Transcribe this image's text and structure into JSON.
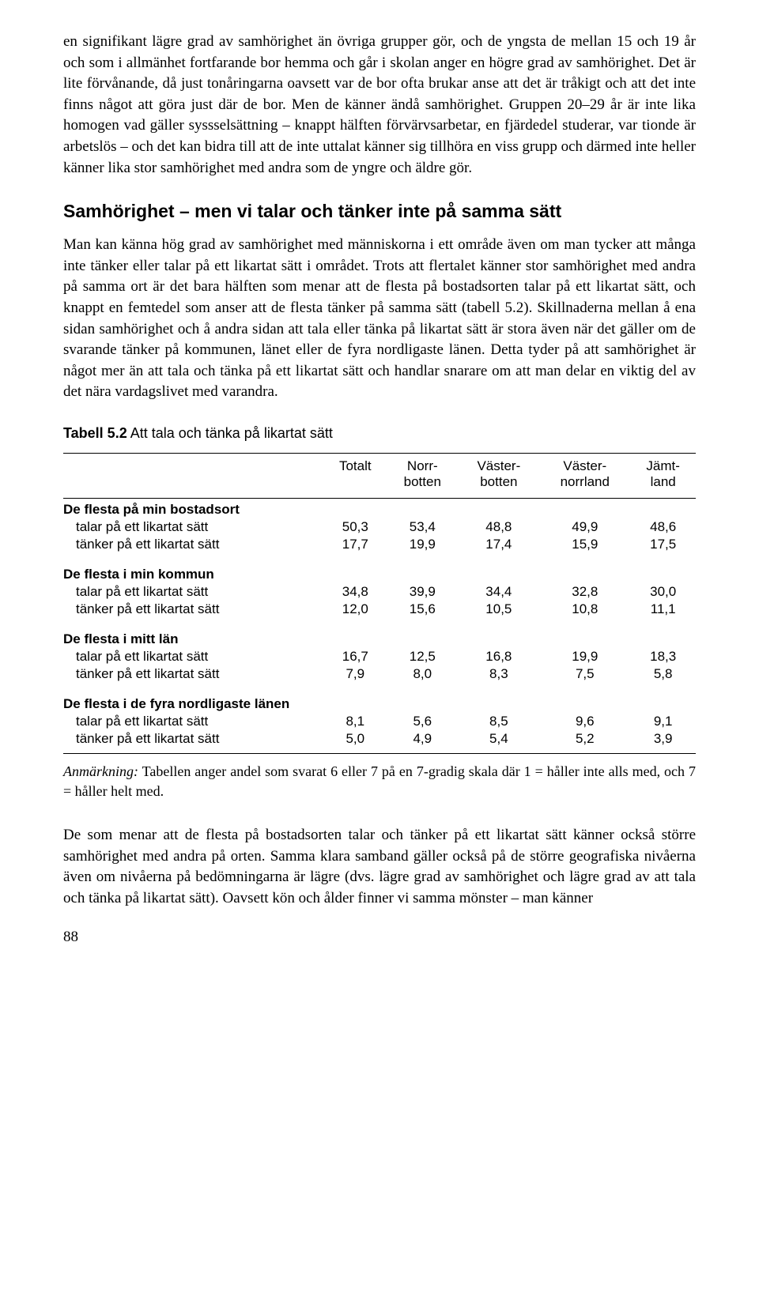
{
  "para1": "en signifikant lägre grad av samhörighet än övriga grupper gör, och de yngsta de mellan 15 och 19 år och som i allmänhet fortfarande bor hemma och går i skolan anger en högre grad av samhörighet. Det är lite förvånande, då just ton­åringarna oavsett var de bor ofta brukar anse att det är tråkigt och att det inte finns något att göra just där de bor. Men de känner ändå samhörighet. Gruppen 20–29 år är inte lika homogen vad gäller syssselsättning – knappt hälften för­värvsarbetar, en fjärdedel studerar, var tionde är arbetslös – och det kan bidra till att de inte uttalat känner sig tillhöra en viss grupp och därmed inte heller känner lika stor samhörighet med andra som de yngre och äldre gör.",
  "heading": "Samhörighet – men vi talar och tänker inte på samma sätt",
  "para2": "Man kan känna hög grad av samhörighet med människorna i ett område även om man tycker att många inte tänker eller talar på ett likartat sätt i området. Trots att flertalet känner stor samhörighet med andra på samma ort är det bara hälften som menar att de flesta på bostadsorten talar på ett likartat sätt, och knappt en femtedel som anser att de flesta tänker på samma sätt (tabell 5.2). Skillnaderna mellan å ena sidan samhörighet och å andra sidan att tala eller tänka på likartat sätt är stora även när det gäller om de svarande tänker på kommunen, länet eller de fyra nordligaste länen. Detta tyder på att samhörighet är något mer än att tala och tänka på ett likartat sätt och handlar snarare om att man delar en viktig del av det nära vardagslivet med varandra.",
  "table": {
    "title_prefix": "Tabell 5.2",
    "title_rest": "  Att tala och tänka på likartat sätt",
    "columns": [
      "",
      "Totalt",
      "Norr­botten",
      "Väster­botten",
      "Väster­norrland",
      "Jämt­land"
    ],
    "col_lines": [
      [
        "Totalt"
      ],
      [
        "Norr-",
        "botten"
      ],
      [
        "Väster-",
        "botten"
      ],
      [
        "Väster-",
        "norrland"
      ],
      [
        "Jämt-",
        "land"
      ]
    ],
    "groups": [
      {
        "head": "De flesta på min bostadsort",
        "rows": [
          {
            "label": "talar på ett likartat sätt",
            "vals": [
              "50,3",
              "53,4",
              "48,8",
              "49,9",
              "48,6"
            ]
          },
          {
            "label": "tänker på ett likartat sätt",
            "vals": [
              "17,7",
              "19,9",
              "17,4",
              "15,9",
              "17,5"
            ]
          }
        ]
      },
      {
        "head": "De flesta i min kommun",
        "rows": [
          {
            "label": "talar på ett likartat sätt",
            "vals": [
              "34,8",
              "39,9",
              "34,4",
              "32,8",
              "30,0"
            ]
          },
          {
            "label": "tänker på ett likartat sätt",
            "vals": [
              "12,0",
              "15,6",
              "10,5",
              "10,8",
              "11,1"
            ]
          }
        ]
      },
      {
        "head": "De flesta i mitt län",
        "rows": [
          {
            "label": "talar på ett likartat sätt",
            "vals": [
              "16,7",
              "12,5",
              "16,8",
              "19,9",
              "18,3"
            ]
          },
          {
            "label": "tänker på ett likartat sätt",
            "vals": [
              "7,9",
              "8,0",
              "8,3",
              "7,5",
              "5,8"
            ]
          }
        ]
      },
      {
        "head": "De flesta i de fyra nordligaste länen",
        "rows": [
          {
            "label": "talar på ett likartat sätt",
            "vals": [
              "8,1",
              "5,6",
              "8,5",
              "9,6",
              "9,1"
            ]
          },
          {
            "label": "tänker på ett likartat sätt",
            "vals": [
              "5,0",
              "4,9",
              "5,4",
              "5,2",
              "3,9"
            ]
          }
        ]
      }
    ]
  },
  "note_label": "Anmärkning:",
  "note_text": " Tabellen anger andel som svarat 6 eller 7 på en 7-gradig skala där 1 = håller inte alls med, och 7 = håller helt med.",
  "para3": "De som menar att de flesta på bostadsorten talar och tänker på ett likartat sätt känner också större samhörighet med andra på orten. Samma klara samband gäller också på de större geografiska nivåerna även om nivåerna på bedömning­arna är lägre (dvs. lägre grad av samhörighet och lägre grad av att tala och tänka på likartat sätt). Oavsett kön och ålder finner vi samma mönster – man känner",
  "page_number": "88"
}
